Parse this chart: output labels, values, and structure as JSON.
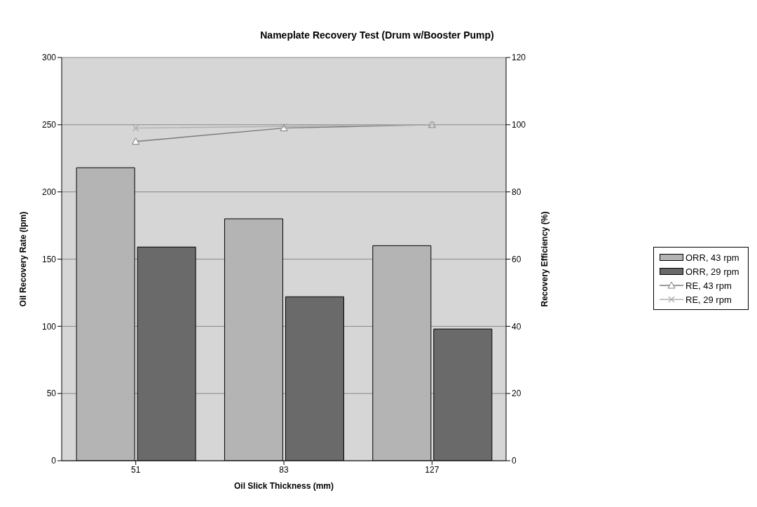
{
  "chart_data": {
    "type": "bar",
    "title": "Nameplate Recovery Test (Drum w/Booster Pump)",
    "xlabel": "Oil Slick Thickness (mm)",
    "ylabel": "Oil Recovery Rate (lpm)",
    "y2label": "Recovery Efficiency (%)",
    "categories": [
      "51",
      "83",
      "127"
    ],
    "series": [
      {
        "name": "ORR, 43 rpm",
        "color": "#b4b4b4",
        "values": [
          218,
          180,
          160
        ]
      },
      {
        "name": "ORR, 29 rpm",
        "color": "#6a6a6a",
        "values": [
          159,
          122,
          98
        ]
      },
      {
        "name": "RE, 43 rpm",
        "type": "line",
        "axis": "y2",
        "marker": "triangle",
        "color": "#7a7a7a",
        "values": [
          95,
          99,
          100
        ]
      },
      {
        "name": "RE, 29 rpm",
        "type": "line",
        "axis": "y2",
        "marker": "cross",
        "color": "#b0b0b0",
        "values": [
          99,
          99.5,
          100
        ]
      }
    ],
    "ylim": [
      0,
      300
    ],
    "yticks": [
      0,
      50,
      100,
      150,
      200,
      250,
      300
    ],
    "y2lim": [
      0,
      120
    ],
    "y2ticks": [
      0,
      20,
      40,
      60,
      80,
      100,
      120
    ],
    "grid": "y",
    "legend": "right"
  }
}
